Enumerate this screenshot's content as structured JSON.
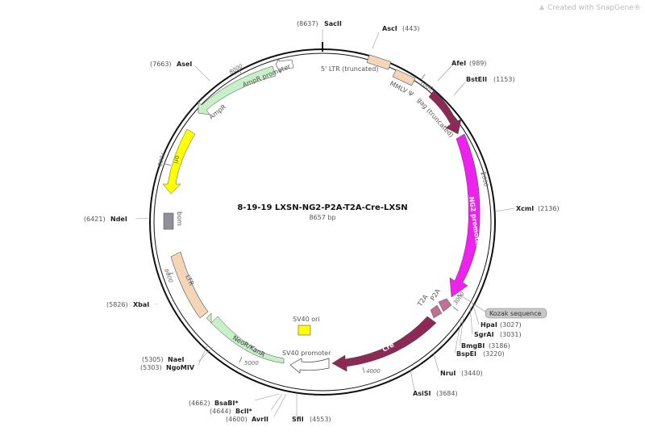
{
  "watermark": "Created with SnapGene®",
  "plasmid": {
    "name": "8-19-19  LXSN-NG2-P2A-T2A-Cre-LXSN",
    "size": "8657 bp"
  },
  "colors": {
    "backbone": "#111111",
    "ltr": "#f5d5b8",
    "gag": "#8c2a55",
    "promoter_ng2": "#ee22ee",
    "cre": "#8c2a55",
    "peptide": "#c07090",
    "resistance": "#c8f0c8",
    "ori": "#ffff00",
    "sv40_ori": "#ffff00",
    "bom": "#909099",
    "promoter_white": "#ffffff",
    "kozak": "#c8c8c8"
  },
  "sites": [
    {
      "name": "SacII",
      "pos": "(8637)"
    },
    {
      "name": "AscI",
      "pos": "(443)"
    },
    {
      "name": "AfeI",
      "pos": "(989)"
    },
    {
      "name": "BstEII",
      "pos": "(1153)"
    },
    {
      "name": "XcmI",
      "pos": "(2136)"
    },
    {
      "name": "HpaI",
      "pos": "(3027)"
    },
    {
      "name": "SgrAI",
      "pos": "(3031)"
    },
    {
      "name": "BmgBI",
      "pos": "(3186)"
    },
    {
      "name": "BspEI",
      "pos": "(3220)"
    },
    {
      "name": "NruI",
      "pos": "(3440)"
    },
    {
      "name": "AsiSI",
      "pos": "(3684)"
    },
    {
      "name": "SfiI",
      "pos": "(4553)"
    },
    {
      "name": "AvrII",
      "pos": "(4600)"
    },
    {
      "name": "BclI*",
      "pos": "(4644)"
    },
    {
      "name": "BsaBI*",
      "pos": "(4662)"
    },
    {
      "name": "NgoMIV",
      "pos": "(5303)"
    },
    {
      "name": "NaeI",
      "pos": "(5305)"
    },
    {
      "name": "XbaI",
      "pos": "(5826)"
    },
    {
      "name": "NdeI",
      "pos": "(6421)"
    },
    {
      "name": "AseI",
      "pos": "(7663)"
    }
  ],
  "features": {
    "ltr5": "5' LTR (truncated)",
    "mmlv": "MMLV Ψ",
    "gag": "gag (truncated)",
    "ng2": "NG2 promoter",
    "t2a": "T2A",
    "p2a": "P2A",
    "kozak": "Kozak sequence",
    "cre": "Cre",
    "sv40_promoter": "SV40 promoter",
    "sv40_ori": "SV40 ori",
    "neo": "NeoR/KanR",
    "ltr3": "LTR",
    "bom": "bom",
    "ori": "ori",
    "ampr": "AmpR",
    "ampr_promoter": "AmpR promoter"
  },
  "ticks": [
    "1000",
    "2000",
    "3000",
    "4000",
    "5000",
    "6000",
    "7000",
    "8000"
  ]
}
